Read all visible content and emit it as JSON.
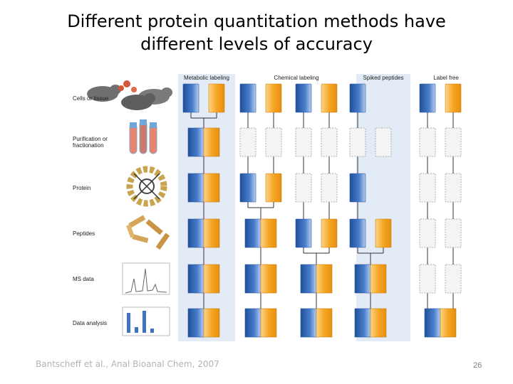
{
  "title_line_1": "Different protein quantitation methods have",
  "title_line_2": "different levels of accuracy",
  "columns": [
    "Metabolic labeling",
    "Chemical labeling",
    "Spiked peptides",
    "Label free"
  ],
  "rows": [
    "Cells or tissue",
    "Purification or fractionation",
    "Protein",
    "Peptides",
    "MS data",
    "Data analysis"
  ],
  "citation": "Bantscheff et al., Anal Bioanal Chem, 2007",
  "slide_number": "26",
  "colors": {
    "blue": "#3f73c0",
    "orange": "#f6a623",
    "shaded_band": "#e3ecf6",
    "empty_box": "#f4f4f4",
    "line": "#333333"
  },
  "workflows": [
    {
      "column": "Metabolic labeling",
      "shaded": true,
      "stages": [
        "separate",
        "merged",
        "merged",
        "merged",
        "merged",
        "merged"
      ]
    },
    {
      "column": "Chemical labeling",
      "shaded": false,
      "stages": [
        "separate",
        "empty",
        "separate",
        "merged",
        "merged",
        "merged"
      ]
    },
    {
      "column": "Chemical labeling",
      "shaded": false,
      "stages": [
        "separate",
        "empty",
        "empty",
        "separate",
        "merged",
        "merged"
      ]
    },
    {
      "column": "Spiked peptides",
      "shaded": true,
      "stages": [
        "blue",
        "empty",
        "blue",
        "separate",
        "merged",
        "merged"
      ]
    },
    {
      "column": "Label free",
      "shaded": false,
      "stages": [
        "separate",
        "empty",
        "empty",
        "empty",
        "empty",
        "merged"
      ]
    }
  ]
}
